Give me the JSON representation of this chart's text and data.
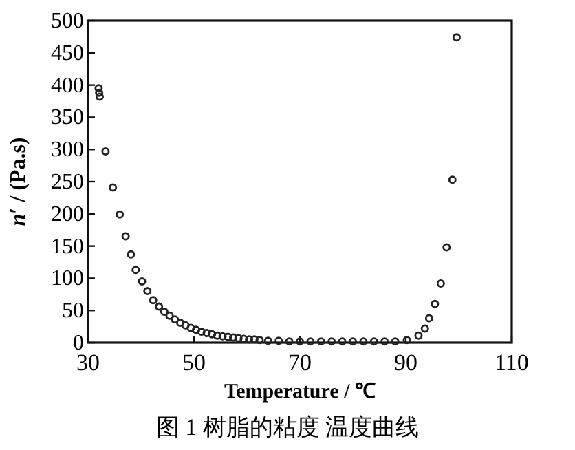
{
  "chart_data": {
    "type": "scatter",
    "xlabel": "Temperature / ℃",
    "ylabel": "*n*′ / (Pa.s)",
    "annotations": [
      "图 1 树脂的粘度 温度曲线"
    ],
    "marker": "circle",
    "grid": false,
    "xlim": [
      30,
      110
    ],
    "ylim": [
      0,
      500
    ],
    "xticks": [
      30,
      50,
      70,
      90,
      110
    ],
    "yticks": [
      0,
      50,
      100,
      150,
      200,
      250,
      300,
      350,
      400,
      450,
      500
    ],
    "series": [
      {
        "color": "#222222",
        "x": [
          32,
          32.1,
          32.2,
          33.3,
          34.7,
          36,
          37.1,
          38.1,
          39,
          40.2,
          41.2,
          42.3,
          43.4,
          44.4,
          45.4,
          46.4,
          47.4,
          48.4,
          49.4,
          50.4,
          51.4,
          52.4,
          53.4,
          54.4,
          55.4,
          56.4,
          57.4,
          58.4,
          59.4,
          60.4,
          61.4,
          62.4,
          64,
          66,
          68,
          70,
          72,
          74,
          76,
          78,
          80,
          82,
          84,
          86,
          88,
          90.2,
          92.4,
          93.6,
          94.4,
          95.5,
          96.6,
          97.7,
          98.8,
          99.6
        ],
        "values": [
          395,
          388,
          382,
          297,
          241,
          199,
          165,
          137,
          113,
          95,
          80,
          66,
          56,
          48,
          42,
          36,
          31,
          27,
          23,
          20,
          17,
          15,
          13,
          11,
          10,
          9,
          8,
          7,
          6,
          5,
          5,
          4,
          3,
          3,
          2,
          2,
          2,
          2,
          2,
          2,
          2,
          2,
          2,
          2,
          2,
          4,
          11,
          22,
          38,
          60,
          92,
          148,
          253,
          474
        ]
      }
    ]
  }
}
